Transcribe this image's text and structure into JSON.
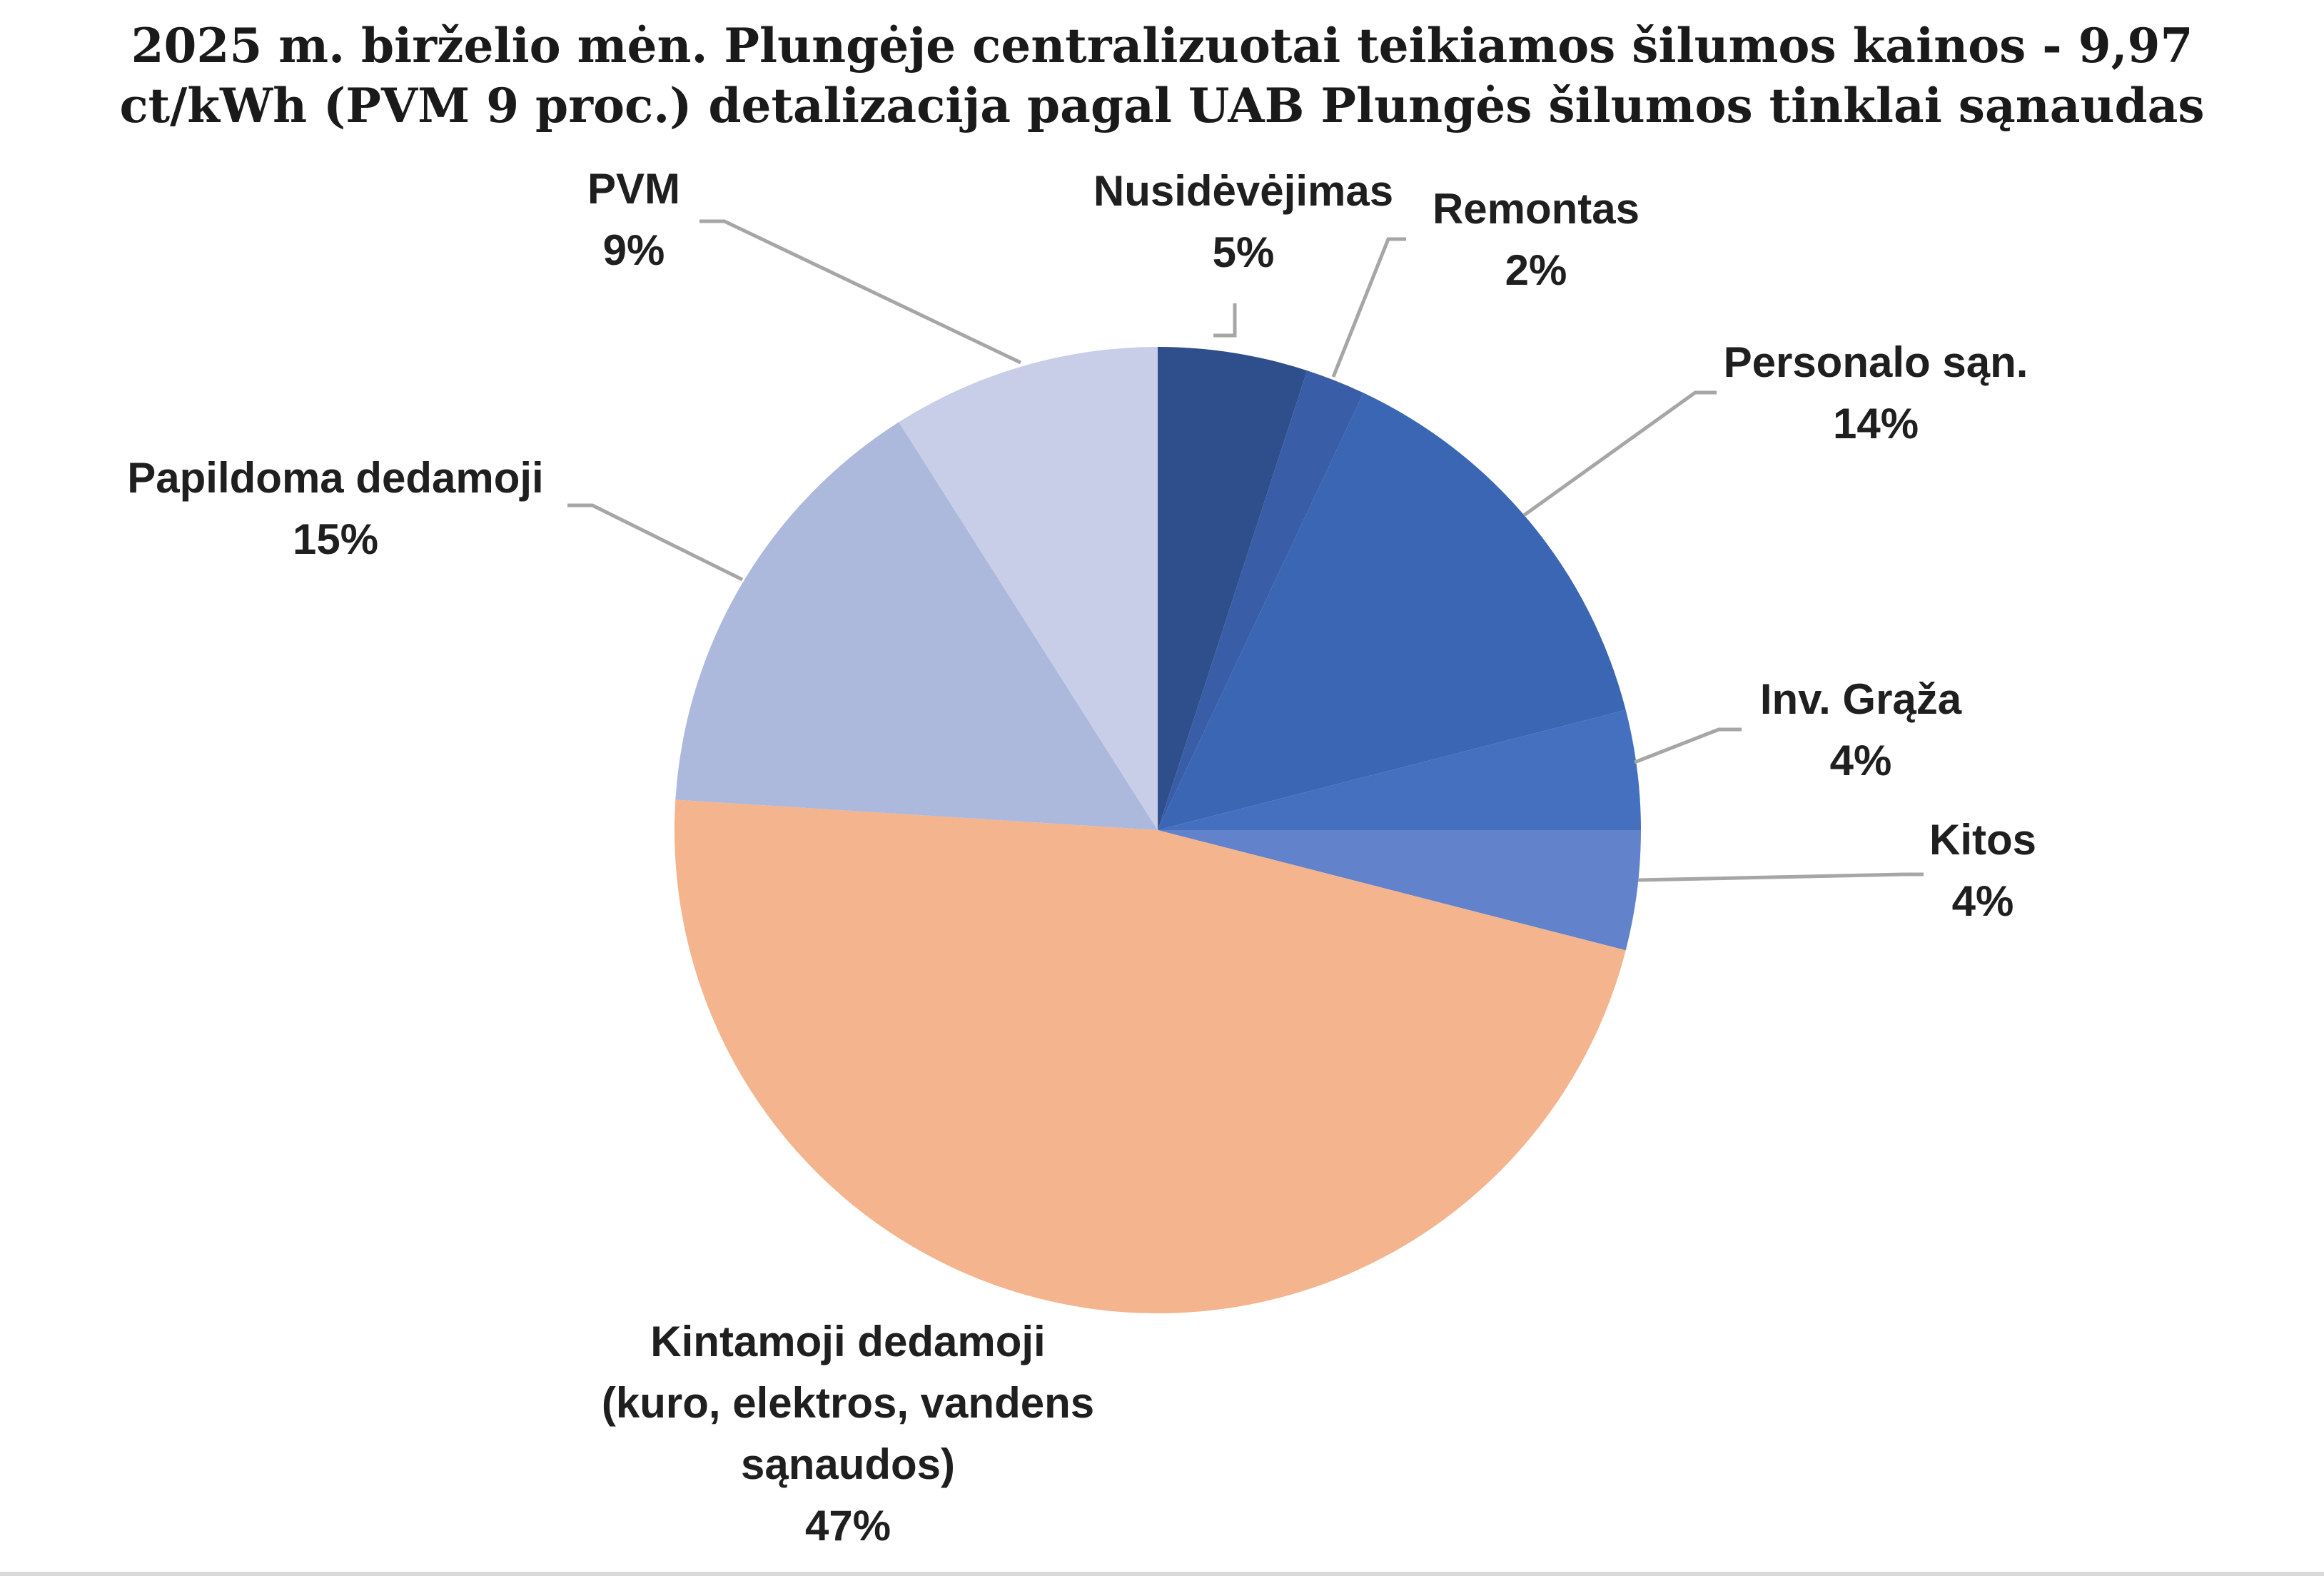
{
  "chart_data": {
    "type": "pie",
    "title_lines": [
      "2025 m. birželio mėn. Plungėje centralizuotai teikiamos šilumos kainos - 9,97",
      "ct/kWh (PVM 9 proc.) detalizacija pagal UAB Plungės šilumos tinklai sąnaudas"
    ],
    "slices": [
      {
        "label_lines": [
          "Nusidėvėjimas"
        ],
        "value": 5,
        "value_label": "5%",
        "color": "#2E4F8C"
      },
      {
        "label_lines": [
          "Remontas"
        ],
        "value": 2,
        "value_label": "2%",
        "color": "#3A5DA8"
      },
      {
        "label_lines": [
          "Personalo sąn."
        ],
        "value": 14,
        "value_label": "14%",
        "color": "#3A66B3"
      },
      {
        "label_lines": [
          "Inv. Grąža"
        ],
        "value": 4,
        "value_label": "4%",
        "color": "#4470BF"
      },
      {
        "label_lines": [
          "Kitos"
        ],
        "value": 4,
        "value_label": "4%",
        "color": "#6282CC"
      },
      {
        "label_lines": [
          "Kintamoji dedamoji",
          "(kuro, elektros, vandens",
          "sąnaudos)"
        ],
        "value": 47,
        "value_label": "47%",
        "color": "#F3B48E"
      },
      {
        "label_lines": [
          "Papildoma dedamoji"
        ],
        "value": 15,
        "value_label": "15%",
        "color": "#ADB9DC"
      },
      {
        "label_lines": [
          "PVM"
        ],
        "value": 9,
        "value_label": "9%",
        "color": "#C8CEE7"
      }
    ]
  }
}
